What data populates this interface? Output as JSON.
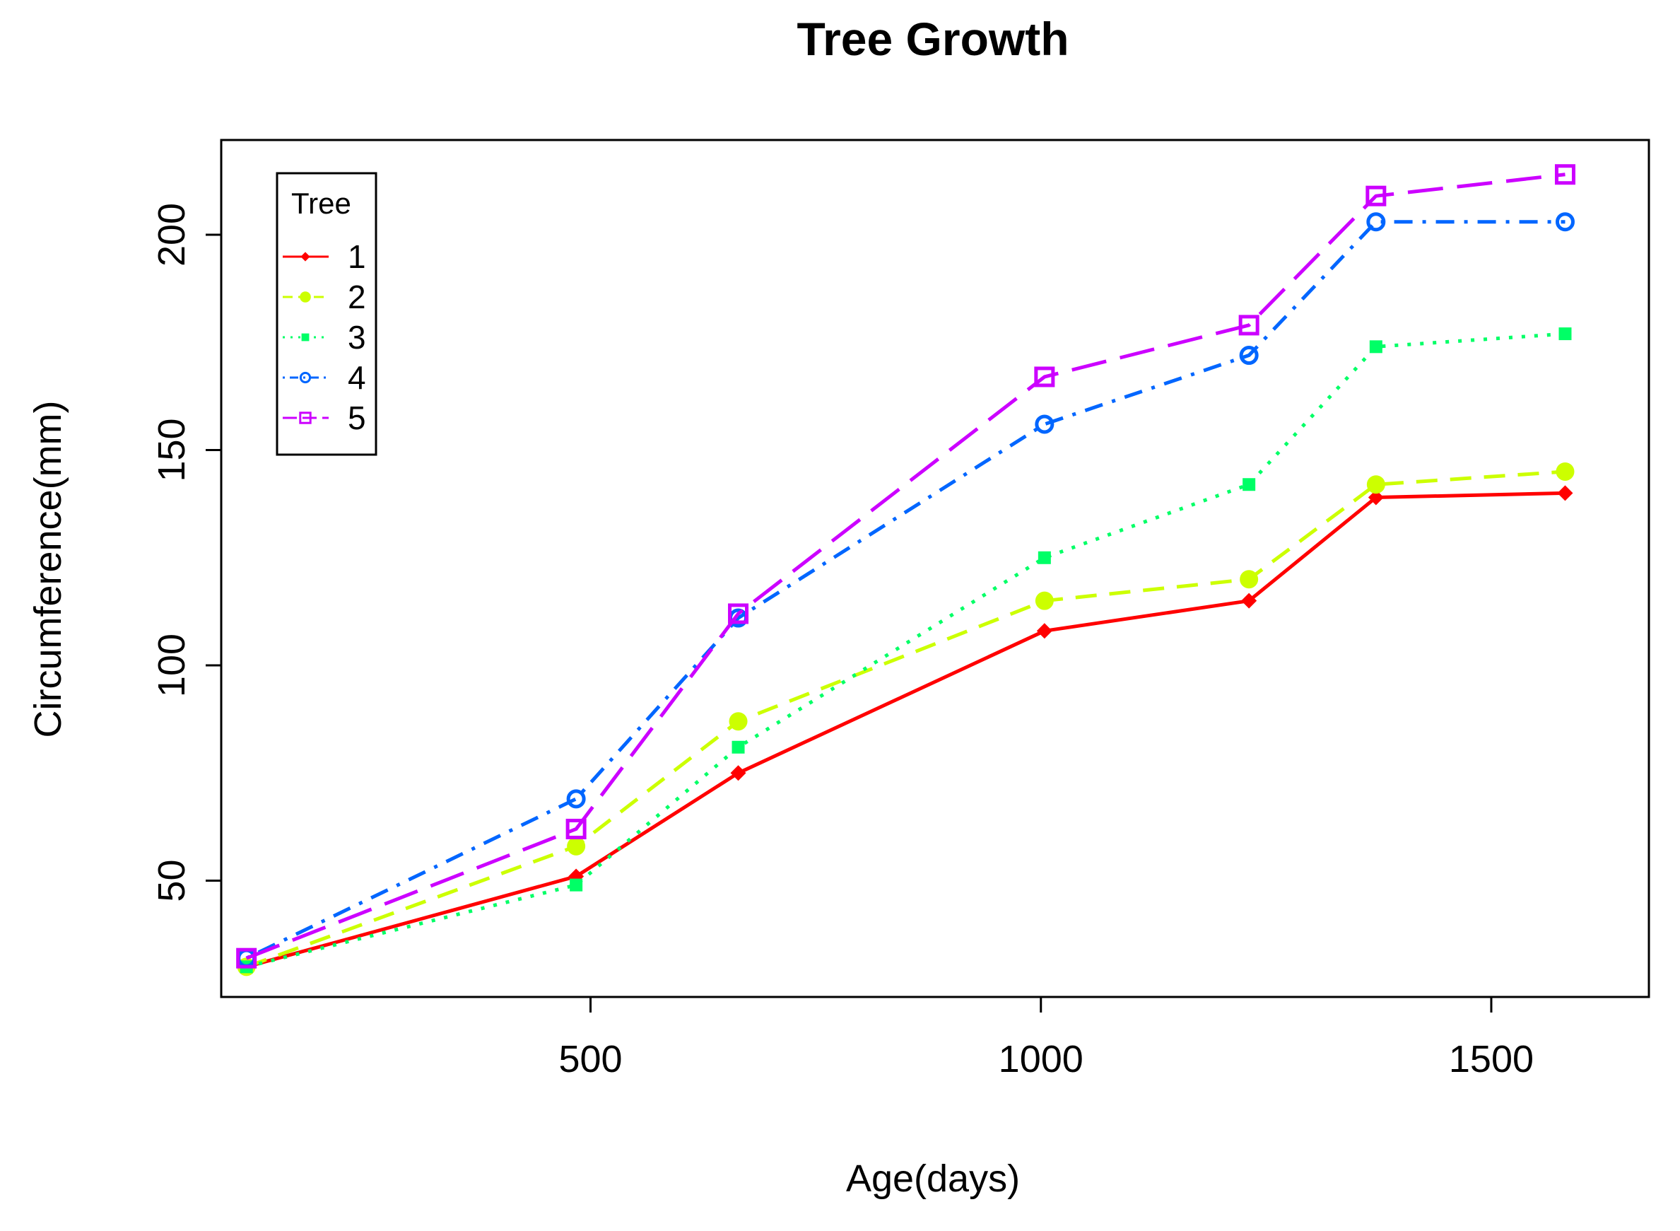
{
  "chart_data": {
    "type": "line",
    "title": "Tree Growth",
    "xlabel": "Age(days)",
    "ylabel": "Circumference(mm)",
    "xlim": [
      90,
      1675
    ],
    "ylim": [
      23,
      222
    ],
    "x": [
      118,
      484,
      664,
      1004,
      1231,
      1372,
      1582
    ],
    "x_ticks": [
      500,
      1000,
      1500
    ],
    "y_ticks": [
      50,
      100,
      150,
      200
    ],
    "grid": false,
    "legend": {
      "title": "Tree",
      "position": "top-left"
    },
    "series": [
      {
        "name": "1",
        "color": "#ff0000",
        "dash": "solid",
        "marker": "diamond-filled",
        "values": [
          30,
          51,
          75,
          108,
          115,
          139,
          140
        ]
      },
      {
        "name": "2",
        "color": "#ccff00",
        "dash": "dashed",
        "marker": "circle-filled",
        "values": [
          30,
          58,
          87,
          115,
          120,
          142,
          145
        ]
      },
      {
        "name": "3",
        "color": "#00ff66",
        "dash": "dotted",
        "marker": "square-filled",
        "values": [
          30,
          49,
          81,
          125,
          142,
          174,
          177
        ]
      },
      {
        "name": "4",
        "color": "#0066ff",
        "dash": "dotdash",
        "marker": "circle-open",
        "values": [
          32,
          69,
          111,
          156,
          172,
          203,
          203
        ]
      },
      {
        "name": "5",
        "color": "#cc00ff",
        "dash": "longdash",
        "marker": "square-open",
        "values": [
          32,
          62,
          112,
          167,
          179,
          209,
          214
        ]
      }
    ]
  }
}
